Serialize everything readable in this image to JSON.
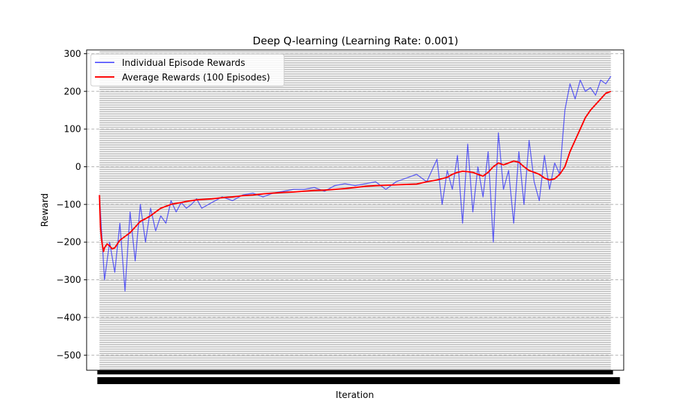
{
  "chart_data": {
    "type": "line",
    "title": "Deep Q-learning (Learning Rate: 0.001)",
    "xlabel": "Iteration",
    "ylabel": "Reward",
    "xlim": [
      -25,
      1025
    ],
    "ylim": [
      -540,
      310
    ],
    "yticks": [
      -500,
      -400,
      -300,
      -200,
      -100,
      0,
      100,
      200,
      300
    ],
    "x_tick_labels_note": "one overlapping tick label per episode; labels unreadable",
    "grid": true,
    "legend_position": "top-left",
    "series": [
      {
        "name": "Individual Episode Rewards",
        "color": "#0000ff",
        "style": "thin line, alpha 0.6",
        "x": [
          0,
          10,
          20,
          30,
          40,
          50,
          60,
          70,
          80,
          90,
          100,
          110,
          120,
          130,
          140,
          150,
          160,
          170,
          180,
          190,
          200,
          220,
          240,
          260,
          280,
          300,
          320,
          340,
          360,
          380,
          400,
          420,
          440,
          460,
          480,
          500,
          520,
          540,
          560,
          580,
          600,
          620,
          640,
          660,
          670,
          680,
          690,
          700,
          710,
          720,
          730,
          740,
          750,
          760,
          770,
          780,
          790,
          800,
          810,
          820,
          830,
          840,
          850,
          860,
          870,
          880,
          890,
          900,
          910,
          920,
          930,
          940,
          950,
          960,
          970,
          980,
          990,
          1000
        ],
        "values": [
          -75,
          -300,
          -200,
          -280,
          -150,
          -330,
          -120,
          -250,
          -100,
          -200,
          -110,
          -170,
          -130,
          -150,
          -90,
          -120,
          -95,
          -110,
          -100,
          -85,
          -110,
          -95,
          -80,
          -90,
          -75,
          -70,
          -80,
          -70,
          -65,
          -60,
          -60,
          -55,
          -65,
          -50,
          -45,
          -50,
          -45,
          -40,
          -60,
          -40,
          -30,
          -20,
          -40,
          20,
          -100,
          -10,
          -60,
          30,
          -150,
          60,
          -120,
          0,
          -80,
          40,
          -200,
          90,
          -60,
          -10,
          -150,
          40,
          -100,
          70,
          -40,
          -90,
          30,
          -60,
          10,
          -20,
          150,
          220,
          180,
          230,
          200,
          210,
          190,
          230,
          220,
          240
        ]
      },
      {
        "name": "Average Rewards (100 Episodes)",
        "color": "#ff0000",
        "style": "thick line",
        "x": [
          0,
          2,
          4,
          6,
          8,
          10,
          15,
          20,
          25,
          30,
          35,
          40,
          50,
          60,
          70,
          80,
          90,
          100,
          110,
          120,
          130,
          140,
          150,
          160,
          170,
          180,
          190,
          200,
          220,
          240,
          260,
          280,
          300,
          320,
          340,
          360,
          380,
          400,
          420,
          440,
          460,
          480,
          500,
          520,
          540,
          560,
          580,
          600,
          620,
          640,
          660,
          680,
          690,
          700,
          710,
          720,
          730,
          740,
          750,
          760,
          770,
          780,
          790,
          800,
          810,
          820,
          830,
          840,
          850,
          860,
          870,
          880,
          890,
          900,
          910,
          920,
          930,
          940,
          950,
          960,
          970,
          980,
          990,
          1000
        ],
        "values": [
          -75,
          -160,
          -190,
          -210,
          -225,
          -215,
          -205,
          -210,
          -218,
          -215,
          -205,
          -195,
          -185,
          -175,
          -160,
          -145,
          -138,
          -130,
          -120,
          -110,
          -105,
          -100,
          -97,
          -95,
          -92,
          -90,
          -88,
          -87,
          -85,
          -82,
          -80,
          -77,
          -75,
          -72,
          -70,
          -68,
          -67,
          -65,
          -63,
          -62,
          -60,
          -58,
          -55,
          -52,
          -50,
          -49,
          -48,
          -47,
          -46,
          -40,
          -35,
          -28,
          -20,
          -15,
          -12,
          -13,
          -15,
          -20,
          -25,
          -15,
          0,
          10,
          5,
          10,
          15,
          12,
          0,
          -10,
          -15,
          -20,
          -30,
          -35,
          -32,
          -20,
          0,
          40,
          70,
          100,
          130,
          150,
          165,
          180,
          195,
          200
        ]
      }
    ]
  }
}
